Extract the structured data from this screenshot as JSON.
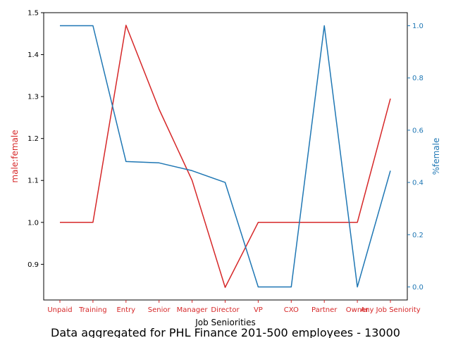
{
  "chart_data": {
    "type": "line",
    "categories": [
      "Unpaid",
      "Training",
      "Entry",
      "Senior",
      "Manager",
      "Director",
      "VP",
      "CXO",
      "Partner",
      "Owner",
      "Any Job Seniority"
    ],
    "xlabel": "Job Seniorities",
    "caption": "Data aggregated for PHL Finance 201-500 employees - 13000",
    "grid": false,
    "left_axis": {
      "label": "male:female",
      "color": "#d62728",
      "ylim": [
        0.815,
        1.5
      ],
      "ticks": [
        0.9,
        1.0,
        1.1,
        1.2,
        1.3,
        1.4,
        1.5
      ],
      "tick_labels": [
        "0.9",
        "1.0",
        "1.1",
        "1.2",
        "1.3",
        "1.4",
        "1.5"
      ]
    },
    "right_axis": {
      "label": "%female",
      "color": "#1f77b4",
      "ylim": [
        -0.05,
        1.05
      ],
      "ticks": [
        0.0,
        0.2,
        0.4,
        0.6,
        0.8,
        1.0
      ],
      "tick_labels": [
        "0.0",
        "0.2",
        "0.4",
        "0.6",
        "0.8",
        "1.0"
      ]
    },
    "series": [
      {
        "axis": "left",
        "color": "#d62728",
        "values": [
          1.0,
          1.0,
          1.47,
          1.27,
          1.1,
          0.845,
          1.0,
          1.0,
          1.0,
          1.0,
          1.295
        ]
      },
      {
        "axis": "right",
        "color": "#1f77b4",
        "values": [
          1.0,
          1.0,
          0.48,
          0.475,
          0.445,
          0.4,
          0.0,
          0.0,
          1.0,
          0.0,
          0.445
        ]
      }
    ]
  }
}
